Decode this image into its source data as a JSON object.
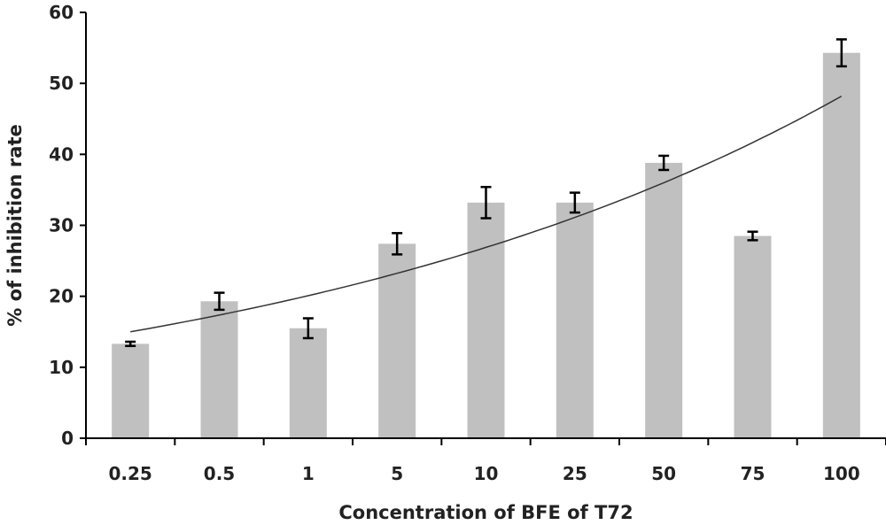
{
  "chart_data": {
    "type": "bar",
    "title": "",
    "xlabel": "Concentration of BFE of T72",
    "ylabel": "% of inhibition rate",
    "categories": [
      "0.25",
      "0.5",
      "1",
      "5",
      "10",
      "25",
      "50",
      "75",
      "100"
    ],
    "values": [
      13.3,
      19.3,
      15.5,
      27.4,
      33.2,
      33.2,
      38.8,
      28.5,
      54.3
    ],
    "errors": [
      0.3,
      1.2,
      1.4,
      1.5,
      2.2,
      1.4,
      1.0,
      0.6,
      1.9
    ],
    "trendline": {
      "type": "exponential",
      "start": 15.0,
      "end": 48.2
    },
    "ylim": [
      0,
      60
    ],
    "yticks": [
      0,
      10,
      20,
      30,
      40,
      50,
      60
    ],
    "grid": false,
    "legend": "none",
    "colors": {
      "bar": "#c0c0c0",
      "axis": "#000000",
      "error": "#000000",
      "trend": "#333333",
      "text": "#222222"
    }
  }
}
